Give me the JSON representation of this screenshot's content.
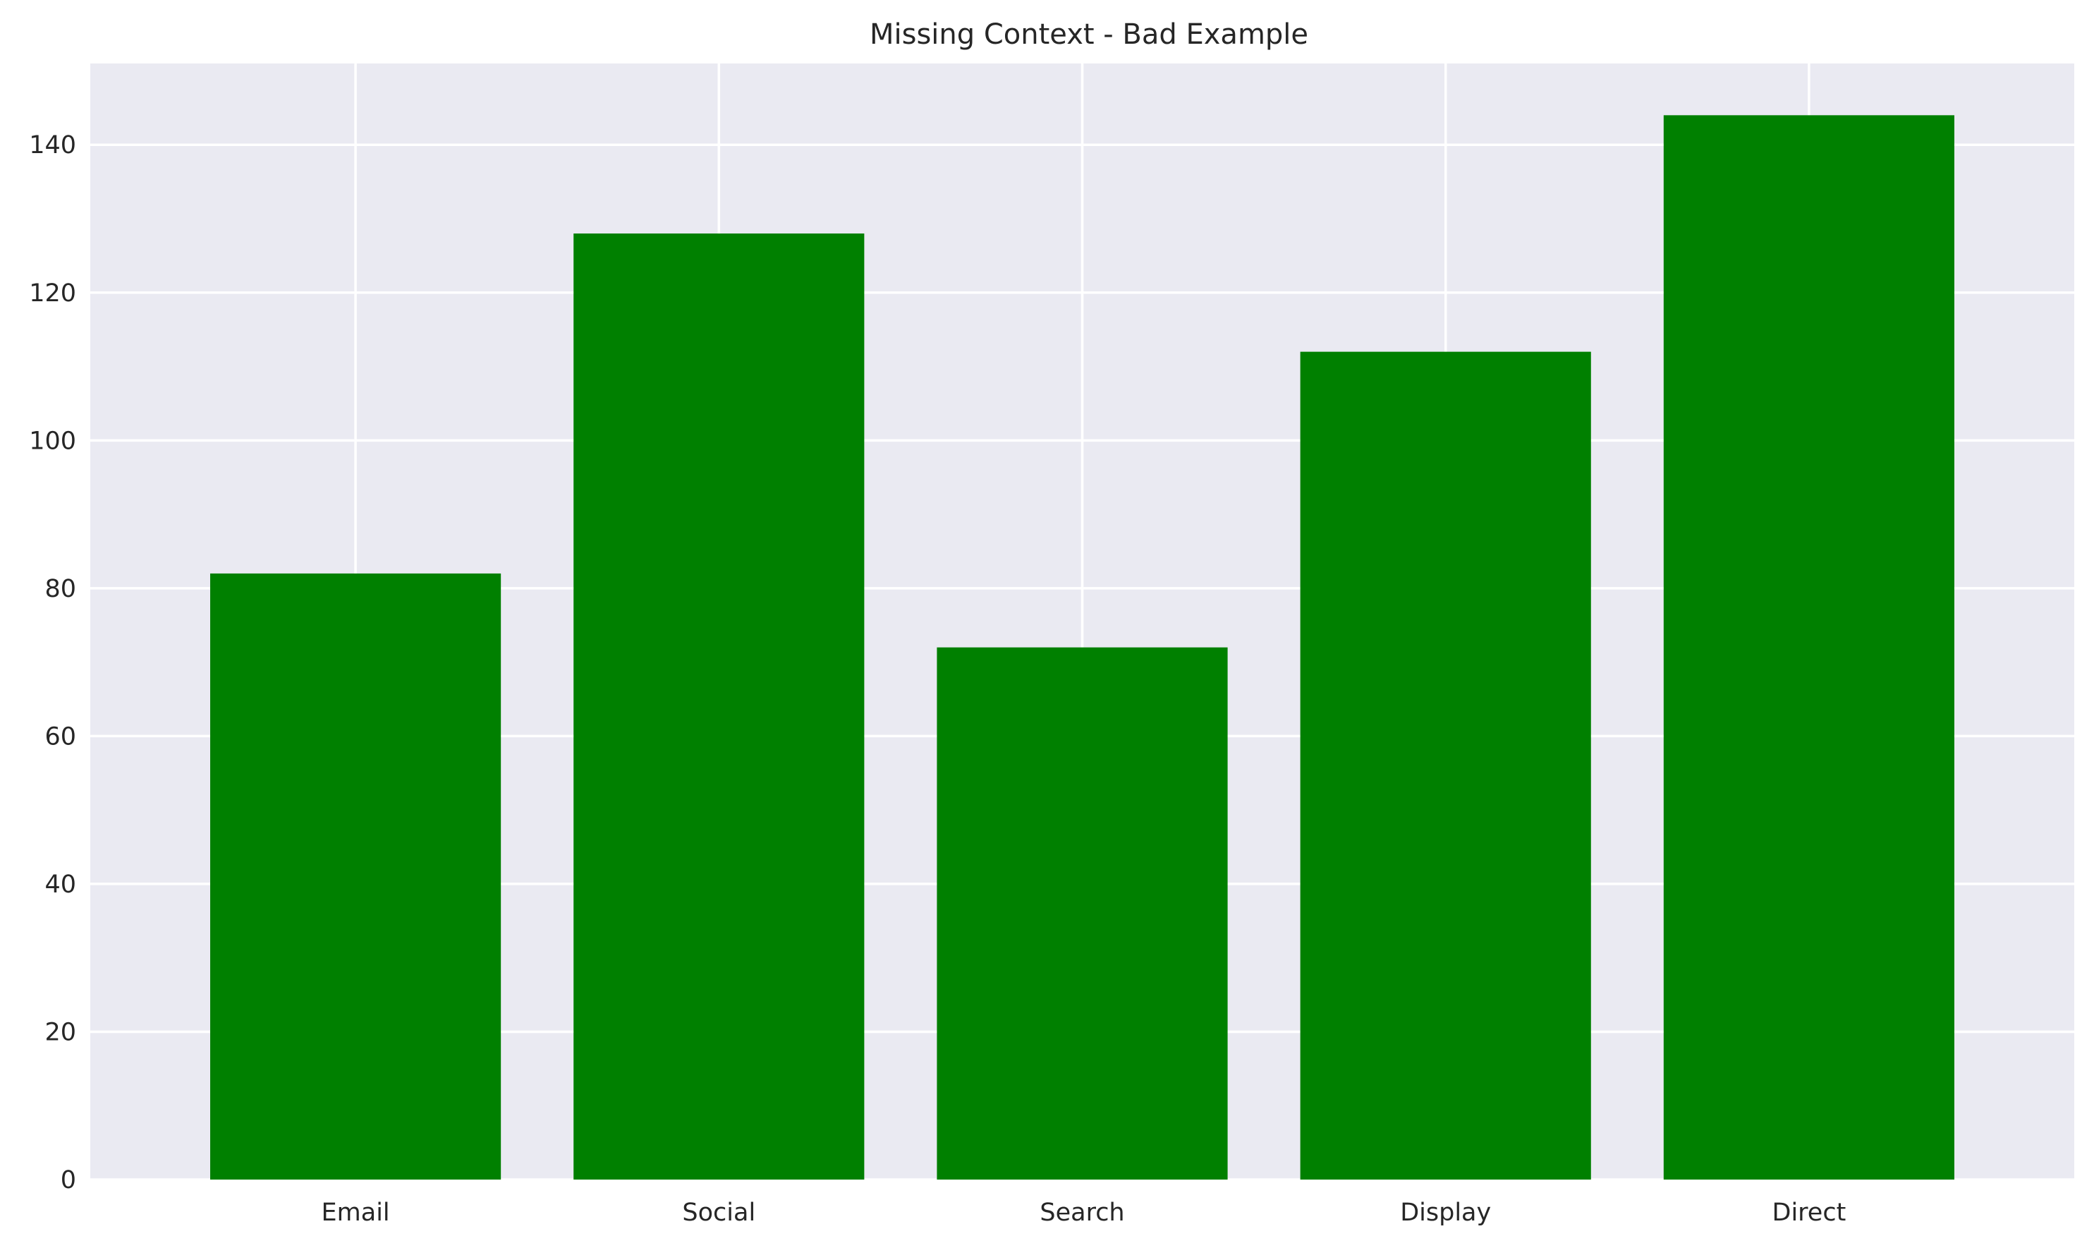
{
  "chart_data": {
    "type": "bar",
    "title": "Missing Context - Bad Example",
    "xlabel": "",
    "ylabel": "",
    "categories": [
      "Email",
      "Social",
      "Search",
      "Display",
      "Direct"
    ],
    "values": [
      82,
      128,
      72,
      112,
      144
    ],
    "ylim": [
      0,
      151
    ],
    "yticks": [
      0,
      20,
      40,
      60,
      80,
      100,
      120,
      140
    ],
    "grid": true,
    "legend": "none",
    "colors": {
      "bar": "#008000",
      "plot_background": "#eaeaf2",
      "grid": "#ffffff"
    }
  }
}
